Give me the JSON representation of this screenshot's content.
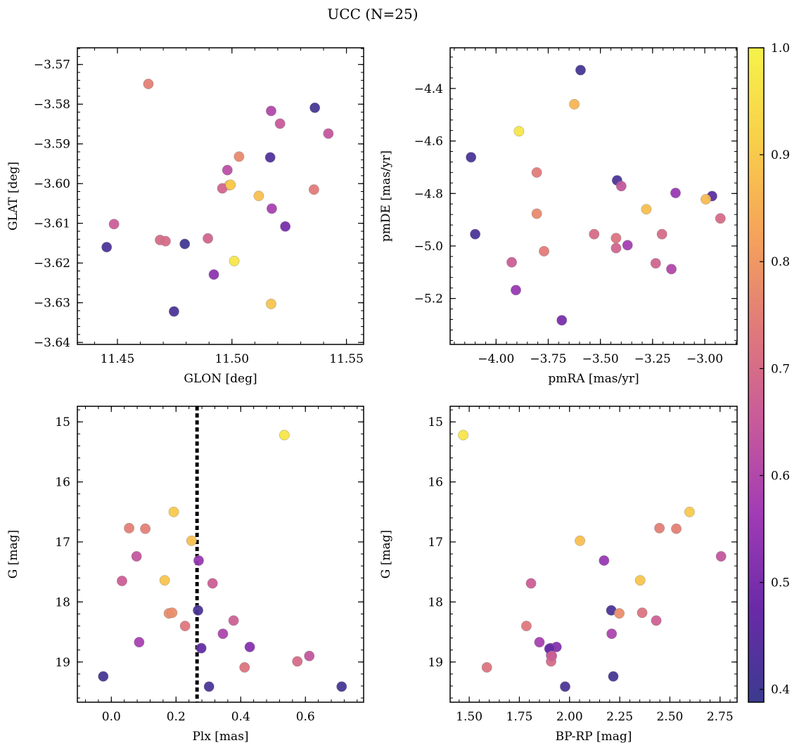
{
  "figure": {
    "title": "UCC (N=25)"
  },
  "colorbar": {
    "ticks": [
      "0.4",
      "0.5",
      "0.6",
      "0.7",
      "0.8",
      "0.9",
      "1.0"
    ],
    "tick_values": [
      0.4,
      0.5,
      0.6,
      0.7,
      0.8,
      0.9,
      1.0
    ],
    "range": [
      0.388,
      1.0
    ],
    "colormap": "plasma",
    "colormap_stops": [
      "#3b3b8f",
      "#6a2aa8",
      "#a03bb5",
      "#c85a9a",
      "#e07a7a",
      "#f5a35a",
      "#f9cf4a",
      "#f5f24a"
    ]
  },
  "chart_data": [
    {
      "type": "scatter",
      "xlabel": "GLON [deg]",
      "ylabel": "GLAT [deg]",
      "xlim": [
        11.4325,
        11.5575
      ],
      "ylim": [
        -3.6405,
        -3.5658
      ],
      "xticks": [
        11.45,
        11.5,
        11.55
      ],
      "xtick_labels": [
        "11.45",
        "11.50",
        "11.55"
      ],
      "yticks": [
        -3.64,
        -3.63,
        -3.62,
        -3.61,
        -3.6,
        -3.59,
        -3.58,
        -3.57
      ],
      "ytick_labels": [
        "−3.64",
        "−3.63",
        "−3.62",
        "−3.61",
        "−3.60",
        "−3.59",
        "−3.58",
        "−3.57"
      ],
      "points": [
        {
          "x": 11.4635,
          "y": -3.5749,
          "c": 0.75
        },
        {
          "x": 11.5362,
          "y": -3.5809,
          "c": 0.41
        },
        {
          "x": 11.5171,
          "y": -3.5817,
          "c": 0.6
        },
        {
          "x": 11.521,
          "y": -3.5849,
          "c": 0.65
        },
        {
          "x": 11.5421,
          "y": -3.5874,
          "c": 0.64
        },
        {
          "x": 11.5031,
          "y": -3.5932,
          "c": 0.77
        },
        {
          "x": 11.5167,
          "y": -3.5934,
          "c": 0.43
        },
        {
          "x": 11.498,
          "y": -3.5966,
          "c": 0.62
        },
        {
          "x": 11.4988,
          "y": -3.6004,
          "c": 0.86
        },
        {
          "x": 11.4958,
          "y": -3.6012,
          "c": 0.68
        },
        {
          "x": 11.5117,
          "y": -3.6031,
          "c": 0.88
        },
        {
          "x": 11.5358,
          "y": -3.6015,
          "c": 0.74
        },
        {
          "x": 11.5174,
          "y": -3.6063,
          "c": 0.58
        },
        {
          "x": 11.4485,
          "y": -3.6102,
          "c": 0.66
        },
        {
          "x": 11.5233,
          "y": -3.6108,
          "c": 0.5
        },
        {
          "x": 11.4686,
          "y": -3.6142,
          "c": 0.7
        },
        {
          "x": 11.471,
          "y": -3.6145,
          "c": 0.7
        },
        {
          "x": 11.4794,
          "y": -3.6152,
          "c": 0.4
        },
        {
          "x": 11.4453,
          "y": -3.616,
          "c": 0.42
        },
        {
          "x": 11.4895,
          "y": -3.6138,
          "c": 0.68
        },
        {
          "x": 11.501,
          "y": -3.6195,
          "c": 0.97
        },
        {
          "x": 11.4921,
          "y": -3.6229,
          "c": 0.53
        },
        {
          "x": 11.5171,
          "y": -3.6303,
          "c": 0.89
        },
        {
          "x": 11.4747,
          "y": -3.6322,
          "c": 0.42
        },
        {
          "x": 11.4994,
          "y": -3.6003,
          "c": 0.9
        }
      ]
    },
    {
      "type": "scatter",
      "xlabel": "pmRA [mas/yr]",
      "ylabel": "pmDE [mas/yr]",
      "xlim": [
        -4.22,
        -2.845
      ],
      "ylim": [
        -5.375,
        -4.245
      ],
      "xticks": [
        -4.0,
        -3.75,
        -3.5,
        -3.25,
        -3.0
      ],
      "xtick_labels": [
        "−4.00",
        "−3.75",
        "−3.50",
        "−3.25",
        "−3.00"
      ],
      "yticks": [
        -5.2,
        -5.0,
        -4.8,
        -4.6,
        -4.4
      ],
      "ytick_labels": [
        "−5.2",
        "−5.0",
        "−4.8",
        "−4.6",
        "−4.4"
      ],
      "points": [
        {
          "x": -3.595,
          "y": -4.33,
          "c": 0.41
        },
        {
          "x": -3.625,
          "y": -4.46,
          "c": 0.86
        },
        {
          "x": -3.89,
          "y": -4.563,
          "c": 0.97
        },
        {
          "x": -4.12,
          "y": -4.662,
          "c": 0.42
        },
        {
          "x": -3.805,
          "y": -4.72,
          "c": 0.74
        },
        {
          "x": -3.42,
          "y": -4.75,
          "c": 0.42
        },
        {
          "x": -3.4,
          "y": -4.772,
          "c": 0.64
        },
        {
          "x": -3.14,
          "y": -4.798,
          "c": 0.55
        },
        {
          "x": -2.965,
          "y": -4.81,
          "c": 0.45
        },
        {
          "x": -2.995,
          "y": -4.822,
          "c": 0.87
        },
        {
          "x": -3.28,
          "y": -4.86,
          "c": 0.88
        },
        {
          "x": -3.805,
          "y": -4.877,
          "c": 0.77
        },
        {
          "x": -2.925,
          "y": -4.895,
          "c": 0.7
        },
        {
          "x": -4.1,
          "y": -4.955,
          "c": 0.42
        },
        {
          "x": -3.53,
          "y": -4.955,
          "c": 0.7
        },
        {
          "x": -3.205,
          "y": -4.955,
          "c": 0.7
        },
        {
          "x": -3.425,
          "y": -4.97,
          "c": 0.72
        },
        {
          "x": -3.37,
          "y": -4.997,
          "c": 0.57
        },
        {
          "x": -3.425,
          "y": -5.008,
          "c": 0.68
        },
        {
          "x": -3.77,
          "y": -5.02,
          "c": 0.74
        },
        {
          "x": -3.925,
          "y": -5.062,
          "c": 0.66
        },
        {
          "x": -3.235,
          "y": -5.066,
          "c": 0.68
        },
        {
          "x": -3.16,
          "y": -5.088,
          "c": 0.6
        },
        {
          "x": -3.905,
          "y": -5.168,
          "c": 0.55
        },
        {
          "x": -3.685,
          "y": -5.283,
          "c": 0.5
        }
      ]
    },
    {
      "type": "scatter",
      "xlabel": "Plx [mas]",
      "ylabel": "G [mag]",
      "xlim": [
        -0.105,
        0.78
      ],
      "ylim": [
        19.67,
        14.74
      ],
      "xticks": [
        0.0,
        0.2,
        0.4,
        0.6
      ],
      "xtick_labels": [
        "0.0",
        "0.2",
        "0.4",
        "0.6"
      ],
      "yticks": [
        15,
        16,
        17,
        18,
        19
      ],
      "ytick_labels": [
        "15",
        "16",
        "17",
        "18",
        "19"
      ],
      "vline": 0.265,
      "points": [
        {
          "x": 0.535,
          "y": 15.22,
          "c": 0.97
        },
        {
          "x": 0.193,
          "y": 16.5,
          "c": 0.9
        },
        {
          "x": 0.055,
          "y": 16.77,
          "c": 0.75
        },
        {
          "x": 0.105,
          "y": 16.78,
          "c": 0.75
        },
        {
          "x": 0.248,
          "y": 16.98,
          "c": 0.88
        },
        {
          "x": 0.078,
          "y": 17.24,
          "c": 0.64
        },
        {
          "x": 0.27,
          "y": 17.31,
          "c": 0.55
        },
        {
          "x": 0.033,
          "y": 17.65,
          "c": 0.66
        },
        {
          "x": 0.165,
          "y": 17.64,
          "c": 0.89
        },
        {
          "x": 0.313,
          "y": 17.69,
          "c": 0.66
        },
        {
          "x": 0.268,
          "y": 18.14,
          "c": 0.42
        },
        {
          "x": 0.178,
          "y": 18.19,
          "c": 0.78
        },
        {
          "x": 0.188,
          "y": 18.18,
          "c": 0.78
        },
        {
          "x": 0.378,
          "y": 18.31,
          "c": 0.67
        },
        {
          "x": 0.228,
          "y": 18.4,
          "c": 0.73
        },
        {
          "x": 0.345,
          "y": 18.53,
          "c": 0.59
        },
        {
          "x": 0.086,
          "y": 18.67,
          "c": 0.58
        },
        {
          "x": 0.428,
          "y": 18.75,
          "c": 0.52
        },
        {
          "x": 0.278,
          "y": 18.77,
          "c": 0.46
        },
        {
          "x": 0.612,
          "y": 18.9,
          "c": 0.64
        },
        {
          "x": 0.575,
          "y": 18.99,
          "c": 0.7
        },
        {
          "x": 0.412,
          "y": 19.09,
          "c": 0.72
        },
        {
          "x": -0.025,
          "y": 19.24,
          "c": 0.41
        },
        {
          "x": 0.302,
          "y": 19.41,
          "c": 0.42
        },
        {
          "x": 0.712,
          "y": 19.41,
          "c": 0.41
        }
      ]
    },
    {
      "type": "scatter",
      "xlabel": "BP-RP [mag]",
      "ylabel": "G [mag]",
      "xlim": [
        1.405,
        2.835
      ],
      "ylim": [
        19.67,
        14.74
      ],
      "xticks": [
        1.5,
        1.75,
        2.0,
        2.25,
        2.5,
        2.75
      ],
      "xtick_labels": [
        "1.50",
        "1.75",
        "2.00",
        "2.25",
        "2.50",
        "2.75"
      ],
      "yticks": [
        15,
        16,
        17,
        18,
        19
      ],
      "ytick_labels": [
        "15",
        "16",
        "17",
        "18",
        "19"
      ],
      "points": [
        {
          "x": 1.47,
          "y": 15.22,
          "c": 0.97
        },
        {
          "x": 2.598,
          "y": 16.5,
          "c": 0.9
        },
        {
          "x": 2.448,
          "y": 16.77,
          "c": 0.75
        },
        {
          "x": 2.532,
          "y": 16.78,
          "c": 0.75
        },
        {
          "x": 2.052,
          "y": 16.98,
          "c": 0.88
        },
        {
          "x": 2.755,
          "y": 17.24,
          "c": 0.64
        },
        {
          "x": 2.172,
          "y": 17.31,
          "c": 0.55
        },
        {
          "x": 2.352,
          "y": 17.64,
          "c": 0.89
        },
        {
          "x": 1.808,
          "y": 17.69,
          "c": 0.66
        },
        {
          "x": 2.208,
          "y": 18.14,
          "c": 0.42
        },
        {
          "x": 2.248,
          "y": 18.19,
          "c": 0.78
        },
        {
          "x": 2.362,
          "y": 18.18,
          "c": 0.72
        },
        {
          "x": 2.432,
          "y": 18.31,
          "c": 0.67
        },
        {
          "x": 1.785,
          "y": 18.4,
          "c": 0.73
        },
        {
          "x": 2.21,
          "y": 18.53,
          "c": 0.59
        },
        {
          "x": 1.85,
          "y": 18.67,
          "c": 0.58
        },
        {
          "x": 1.905,
          "y": 18.77,
          "c": 0.46
        },
        {
          "x": 1.935,
          "y": 18.75,
          "c": 0.52
        },
        {
          "x": 1.908,
          "y": 18.89,
          "c": 0.64
        },
        {
          "x": 1.908,
          "y": 18.99,
          "c": 0.7
        },
        {
          "x": 1.588,
          "y": 19.09,
          "c": 0.72
        },
        {
          "x": 2.218,
          "y": 19.24,
          "c": 0.41
        },
        {
          "x": 1.978,
          "y": 19.41,
          "c": 0.42
        },
        {
          "x": 1.9,
          "y": 18.78,
          "c": 0.47
        },
        {
          "x": 1.912,
          "y": 18.9,
          "c": 0.66
        }
      ]
    }
  ]
}
